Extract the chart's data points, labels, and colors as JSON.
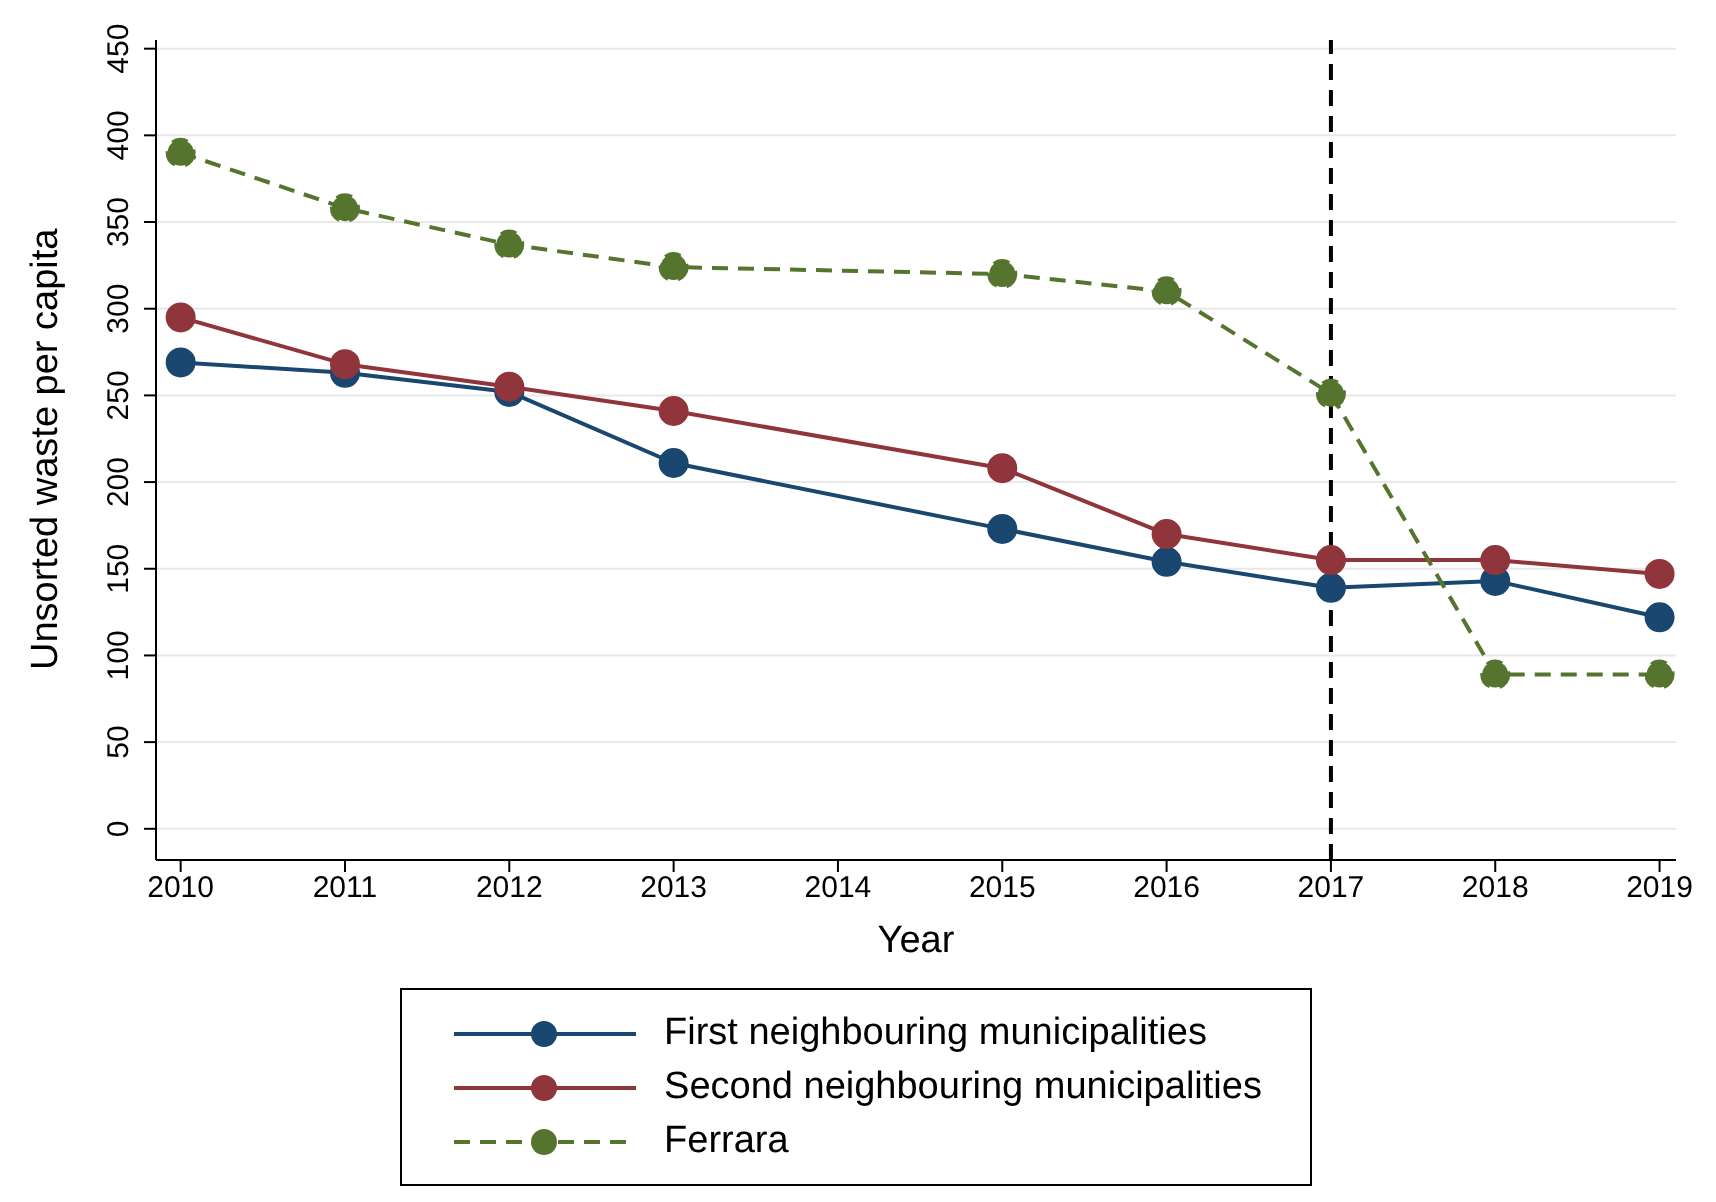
{
  "chart_data": {
    "type": "line",
    "xlabel": "Year",
    "ylabel": "Unsorted waste per capita",
    "x": [
      2010,
      2011,
      2012,
      2013,
      2015,
      2016,
      2017,
      2018,
      2019
    ],
    "series": [
      {
        "name": "First neighbouring municipalities",
        "color": "#1a476f",
        "values": [
          269,
          263,
          252,
          211,
          173,
          154,
          139,
          143,
          122
        ]
      },
      {
        "name": "Second neighbouring municipalities",
        "color": "#90353b",
        "values": [
          295,
          268,
          255,
          241,
          208,
          170,
          155,
          155,
          147
        ]
      },
      {
        "name": "Ferrara",
        "color": "#55752f",
        "line_style": "dashed",
        "values": [
          390,
          358,
          337,
          324,
          320,
          310,
          251,
          89,
          89
        ]
      }
    ],
    "xlim": [
      2009.85,
      2019.1
    ],
    "xticks": [
      2010,
      2011,
      2012,
      2013,
      2014,
      2015,
      2016,
      2017,
      2018,
      2019
    ],
    "ylim": [
      -18,
      455
    ],
    "yticks": [
      0,
      50,
      100,
      150,
      200,
      250,
      300,
      350,
      400,
      450
    ],
    "ref_lines": [
      {
        "axis": "x",
        "value": 2017,
        "color": "#000000",
        "line_style": "dashed"
      }
    ],
    "grid": "y",
    "legend": "bottom",
    "marker": "circle",
    "line_style": "solid"
  }
}
